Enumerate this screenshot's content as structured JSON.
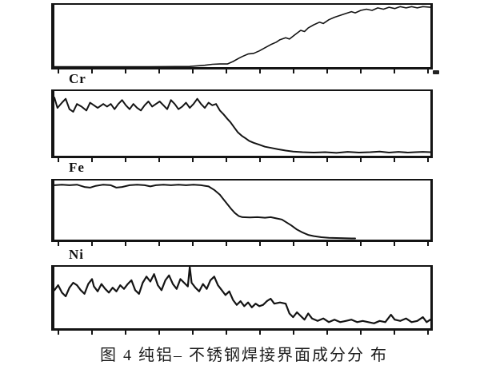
{
  "figure": {
    "caption": "图 4  纯铝– 不锈钢焊接界面成分分 布"
  },
  "chart_data": {
    "type": "line",
    "title": "图 4  纯铝– 不锈钢焊接界面成分分 布",
    "layout": {
      "panels_stacked": 4,
      "tick_count": 12,
      "x_axis_tick_labels": "none",
      "y_axis_tick_labels": "none",
      "x_range": [
        0,
        1
      ],
      "y_range": [
        0,
        1
      ],
      "line_color": "#141414",
      "background": "#ffffff",
      "legend": "none"
    },
    "panels": [
      {
        "label": "",
        "points": [
          [
            0,
            0.005
          ],
          [
            0.25,
            0.005
          ],
          [
            0.36,
            0.01
          ],
          [
            0.4,
            0.03
          ],
          [
            0.42,
            0.045
          ],
          [
            0.44,
            0.05
          ],
          [
            0.46,
            0.05
          ],
          [
            0.475,
            0.09
          ],
          [
            0.49,
            0.14
          ],
          [
            0.5,
            0.17
          ],
          [
            0.515,
            0.21
          ],
          [
            0.53,
            0.22
          ],
          [
            0.545,
            0.26
          ],
          [
            0.56,
            0.31
          ],
          [
            0.575,
            0.36
          ],
          [
            0.59,
            0.4
          ],
          [
            0.6,
            0.44
          ],
          [
            0.615,
            0.47
          ],
          [
            0.625,
            0.45
          ],
          [
            0.64,
            0.52
          ],
          [
            0.655,
            0.59
          ],
          [
            0.665,
            0.57
          ],
          [
            0.675,
            0.63
          ],
          [
            0.69,
            0.68
          ],
          [
            0.705,
            0.72
          ],
          [
            0.715,
            0.7
          ],
          [
            0.73,
            0.76
          ],
          [
            0.745,
            0.8
          ],
          [
            0.76,
            0.83
          ],
          [
            0.775,
            0.86
          ],
          [
            0.79,
            0.89
          ],
          [
            0.8,
            0.87
          ],
          [
            0.815,
            0.91
          ],
          [
            0.83,
            0.93
          ],
          [
            0.845,
            0.91
          ],
          [
            0.86,
            0.95
          ],
          [
            0.875,
            0.93
          ],
          [
            0.89,
            0.96
          ],
          [
            0.905,
            0.94
          ],
          [
            0.92,
            0.97
          ],
          [
            0.935,
            0.95
          ],
          [
            0.95,
            0.97
          ],
          [
            0.965,
            0.95
          ],
          [
            0.98,
            0.97
          ],
          [
            1,
            0.96
          ]
        ]
      },
      {
        "label": "Cr",
        "points": [
          [
            0,
            0.9
          ],
          [
            0.008,
            0.74
          ],
          [
            0.02,
            0.82
          ],
          [
            0.03,
            0.88
          ],
          [
            0.04,
            0.72
          ],
          [
            0.05,
            0.68
          ],
          [
            0.06,
            0.8
          ],
          [
            0.072,
            0.76
          ],
          [
            0.085,
            0.7
          ],
          [
            0.095,
            0.82
          ],
          [
            0.105,
            0.78
          ],
          [
            0.115,
            0.74
          ],
          [
            0.13,
            0.8
          ],
          [
            0.14,
            0.76
          ],
          [
            0.15,
            0.8
          ],
          [
            0.16,
            0.72
          ],
          [
            0.17,
            0.8
          ],
          [
            0.18,
            0.86
          ],
          [
            0.19,
            0.78
          ],
          [
            0.2,
            0.72
          ],
          [
            0.21,
            0.8
          ],
          [
            0.22,
            0.74
          ],
          [
            0.23,
            0.7
          ],
          [
            0.24,
            0.78
          ],
          [
            0.25,
            0.84
          ],
          [
            0.26,
            0.76
          ],
          [
            0.27,
            0.8
          ],
          [
            0.28,
            0.84
          ],
          [
            0.29,
            0.78
          ],
          [
            0.3,
            0.72
          ],
          [
            0.31,
            0.86
          ],
          [
            0.32,
            0.8
          ],
          [
            0.33,
            0.72
          ],
          [
            0.34,
            0.76
          ],
          [
            0.35,
            0.82
          ],
          [
            0.36,
            0.74
          ],
          [
            0.37,
            0.8
          ],
          [
            0.38,
            0.88
          ],
          [
            0.39,
            0.8
          ],
          [
            0.4,
            0.74
          ],
          [
            0.41,
            0.82
          ],
          [
            0.42,
            0.78
          ],
          [
            0.43,
            0.8
          ],
          [
            0.44,
            0.7
          ],
          [
            0.45,
            0.64
          ],
          [
            0.46,
            0.57
          ],
          [
            0.468,
            0.52
          ],
          [
            0.478,
            0.44
          ],
          [
            0.488,
            0.36
          ],
          [
            0.498,
            0.31
          ],
          [
            0.508,
            0.27
          ],
          [
            0.518,
            0.23
          ],
          [
            0.53,
            0.2
          ],
          [
            0.545,
            0.17
          ],
          [
            0.56,
            0.14
          ],
          [
            0.578,
            0.12
          ],
          [
            0.595,
            0.1
          ],
          [
            0.615,
            0.08
          ],
          [
            0.635,
            0.065
          ],
          [
            0.66,
            0.055
          ],
          [
            0.69,
            0.05
          ],
          [
            0.72,
            0.055
          ],
          [
            0.75,
            0.045
          ],
          [
            0.78,
            0.06
          ],
          [
            0.81,
            0.05
          ],
          [
            0.84,
            0.055
          ],
          [
            0.865,
            0.065
          ],
          [
            0.89,
            0.05
          ],
          [
            0.915,
            0.06
          ],
          [
            0.94,
            0.05
          ],
          [
            0.96,
            0.055
          ],
          [
            0.98,
            0.06
          ],
          [
            1,
            0.055
          ]
        ]
      },
      {
        "label": "Fe",
        "points": [
          [
            0,
            0.92
          ],
          [
            0.02,
            0.93
          ],
          [
            0.04,
            0.92
          ],
          [
            0.06,
            0.93
          ],
          [
            0.08,
            0.89
          ],
          [
            0.095,
            0.88
          ],
          [
            0.11,
            0.91
          ],
          [
            0.13,
            0.93
          ],
          [
            0.15,
            0.92
          ],
          [
            0.165,
            0.88
          ],
          [
            0.18,
            0.89
          ],
          [
            0.2,
            0.92
          ],
          [
            0.22,
            0.93
          ],
          [
            0.24,
            0.92
          ],
          [
            0.255,
            0.9
          ],
          [
            0.27,
            0.92
          ],
          [
            0.29,
            0.93
          ],
          [
            0.31,
            0.92
          ],
          [
            0.33,
            0.93
          ],
          [
            0.35,
            0.92
          ],
          [
            0.37,
            0.93
          ],
          [
            0.39,
            0.92
          ],
          [
            0.41,
            0.9
          ],
          [
            0.425,
            0.84
          ],
          [
            0.44,
            0.76
          ],
          [
            0.45,
            0.68
          ],
          [
            0.46,
            0.6
          ],
          [
            0.47,
            0.52
          ],
          [
            0.48,
            0.45
          ],
          [
            0.49,
            0.4
          ],
          [
            0.5,
            0.38
          ],
          [
            0.52,
            0.375
          ],
          [
            0.54,
            0.38
          ],
          [
            0.56,
            0.37
          ],
          [
            0.575,
            0.38
          ],
          [
            0.59,
            0.36
          ],
          [
            0.605,
            0.34
          ],
          [
            0.615,
            0.3
          ],
          [
            0.63,
            0.24
          ],
          [
            0.645,
            0.17
          ],
          [
            0.66,
            0.12
          ],
          [
            0.675,
            0.08
          ],
          [
            0.69,
            0.06
          ],
          [
            0.71,
            0.04
          ],
          [
            0.73,
            0.03
          ],
          [
            0.76,
            0.025
          ],
          [
            0.79,
            0.02
          ],
          [
            0.8,
            0.02
          ]
        ]
      },
      {
        "label": "Ni",
        "points": [
          [
            0,
            0.62
          ],
          [
            0.01,
            0.7
          ],
          [
            0.02,
            0.58
          ],
          [
            0.03,
            0.52
          ],
          [
            0.04,
            0.66
          ],
          [
            0.05,
            0.74
          ],
          [
            0.06,
            0.7
          ],
          [
            0.07,
            0.62
          ],
          [
            0.08,
            0.56
          ],
          [
            0.09,
            0.72
          ],
          [
            0.1,
            0.8
          ],
          [
            0.105,
            0.68
          ],
          [
            0.115,
            0.6
          ],
          [
            0.125,
            0.72
          ],
          [
            0.135,
            0.64
          ],
          [
            0.145,
            0.58
          ],
          [
            0.155,
            0.66
          ],
          [
            0.165,
            0.6
          ],
          [
            0.175,
            0.7
          ],
          [
            0.185,
            0.64
          ],
          [
            0.195,
            0.72
          ],
          [
            0.205,
            0.78
          ],
          [
            0.215,
            0.62
          ],
          [
            0.225,
            0.56
          ],
          [
            0.235,
            0.74
          ],
          [
            0.245,
            0.84
          ],
          [
            0.255,
            0.76
          ],
          [
            0.265,
            0.88
          ],
          [
            0.275,
            0.7
          ],
          [
            0.285,
            0.62
          ],
          [
            0.295,
            0.78
          ],
          [
            0.305,
            0.86
          ],
          [
            0.315,
            0.72
          ],
          [
            0.325,
            0.64
          ],
          [
            0.335,
            0.8
          ],
          [
            0.345,
            0.74
          ],
          [
            0.355,
            0.68
          ],
          [
            0.36,
            1.0
          ],
          [
            0.365,
            0.74
          ],
          [
            0.375,
            0.66
          ],
          [
            0.385,
            0.6
          ],
          [
            0.395,
            0.72
          ],
          [
            0.405,
            0.64
          ],
          [
            0.415,
            0.78
          ],
          [
            0.425,
            0.84
          ],
          [
            0.435,
            0.7
          ],
          [
            0.445,
            0.62
          ],
          [
            0.455,
            0.54
          ],
          [
            0.465,
            0.6
          ],
          [
            0.475,
            0.46
          ],
          [
            0.485,
            0.38
          ],
          [
            0.495,
            0.44
          ],
          [
            0.505,
            0.36
          ],
          [
            0.515,
            0.42
          ],
          [
            0.525,
            0.34
          ],
          [
            0.535,
            0.4
          ],
          [
            0.545,
            0.36
          ],
          [
            0.555,
            0.38
          ],
          [
            0.565,
            0.44
          ],
          [
            0.575,
            0.48
          ],
          [
            0.585,
            0.4
          ],
          [
            0.6,
            0.42
          ],
          [
            0.615,
            0.4
          ],
          [
            0.625,
            0.24
          ],
          [
            0.635,
            0.18
          ],
          [
            0.645,
            0.26
          ],
          [
            0.655,
            0.2
          ],
          [
            0.665,
            0.14
          ],
          [
            0.675,
            0.24
          ],
          [
            0.685,
            0.16
          ],
          [
            0.7,
            0.12
          ],
          [
            0.715,
            0.16
          ],
          [
            0.73,
            0.1
          ],
          [
            0.745,
            0.14
          ],
          [
            0.76,
            0.1
          ],
          [
            0.775,
            0.12
          ],
          [
            0.79,
            0.14
          ],
          [
            0.805,
            0.1
          ],
          [
            0.82,
            0.12
          ],
          [
            0.835,
            0.1
          ],
          [
            0.85,
            0.08
          ],
          [
            0.865,
            0.12
          ],
          [
            0.88,
            0.1
          ],
          [
            0.895,
            0.22
          ],
          [
            0.905,
            0.14
          ],
          [
            0.92,
            0.12
          ],
          [
            0.935,
            0.16
          ],
          [
            0.95,
            0.1
          ],
          [
            0.965,
            0.12
          ],
          [
            0.98,
            0.18
          ],
          [
            0.99,
            0.1
          ],
          [
            1,
            0.14
          ]
        ]
      }
    ]
  }
}
